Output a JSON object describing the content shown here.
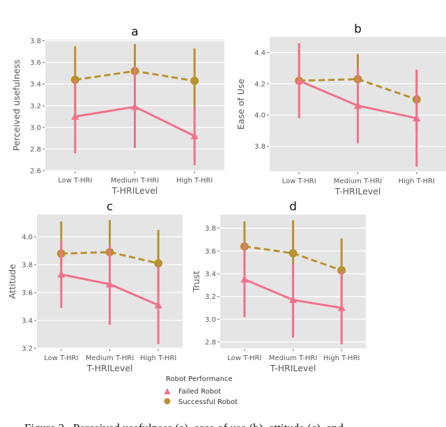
{
  "caption": "Figure 2 . Perceived usefulness (a), ease of use (b), attitude (c), and",
  "colors": {
    "failed": "#f2708a",
    "successful": "#b8922e",
    "panel_bg": "#e5e5e5",
    "grid": "#ffffff"
  },
  "legend": {
    "title": "Robot Performance",
    "entries": [
      {
        "label": "Failed Robot",
        "marker": "triangle",
        "line": "solid"
      },
      {
        "label": "Successful Robot",
        "marker": "circle",
        "line": "dashed"
      }
    ],
    "placement": "bottom-center"
  },
  "chart_data": [
    {
      "type": "line",
      "title": "a",
      "xlabel": "T-HRILevel",
      "ylabel": "Perceived usefulness",
      "categories": [
        "Low T-HRI",
        "Medium T-HRI",
        "High T-HRI"
      ],
      "ylim": [
        2.6,
        3.81
      ],
      "yticks": [
        "2.6",
        "2.8",
        "3.0",
        "3.2",
        "3.4",
        "3.6",
        "3.8"
      ],
      "grid": true,
      "series": [
        {
          "name": "Failed Robot",
          "values": [
            3.1,
            3.19,
            2.92
          ],
          "err_low": [
            2.76,
            2.81,
            2.65
          ],
          "err_high": [
            3.44,
            3.57,
            3.19
          ]
        },
        {
          "name": "Successful Robot",
          "values": [
            3.44,
            3.52,
            3.43
          ],
          "err_low": [
            3.14,
            3.26,
            3.14
          ],
          "err_high": [
            3.75,
            3.77,
            3.73
          ]
        }
      ]
    },
    {
      "type": "line",
      "title": "b",
      "xlabel": "T-HRILevel",
      "ylabel": "Ease of Use",
      "categories": [
        "Low T-HRI",
        "Medium T-HRI",
        "High T-HRI"
      ],
      "ylim": [
        3.64,
        4.5
      ],
      "yticks": [
        "3.8",
        "4.0",
        "4.2",
        "4.4"
      ],
      "grid": true,
      "series": [
        {
          "name": "Failed Robot",
          "values": [
            4.22,
            4.06,
            3.98
          ],
          "err_low": [
            3.98,
            3.82,
            3.67
          ],
          "err_high": [
            4.46,
            4.3,
            4.29
          ]
        },
        {
          "name": "Successful Robot",
          "values": [
            4.22,
            4.23,
            4.1
          ],
          "err_low": [
            4.02,
            4.07,
            3.89
          ],
          "err_high": [
            4.42,
            4.39,
            4.29
          ]
        }
      ]
    },
    {
      "type": "line",
      "title": "c",
      "xlabel": "T-HRILevel",
      "ylabel": "Attitude",
      "categories": [
        "Low T-HRI",
        "Medium T-HRI",
        "High T-HRI"
      ],
      "ylim": [
        3.2,
        4.16
      ],
      "yticks": [
        "3.2",
        "3.4",
        "3.6",
        "3.8",
        "4.0"
      ],
      "grid": true,
      "series": [
        {
          "name": "Failed Robot",
          "values": [
            3.73,
            3.66,
            3.51
          ],
          "err_low": [
            3.49,
            3.37,
            3.23
          ],
          "err_high": [
            3.97,
            3.94,
            3.79
          ]
        },
        {
          "name": "Successful Robot",
          "values": [
            3.88,
            3.89,
            3.81
          ],
          "err_low": [
            3.64,
            3.66,
            3.58
          ],
          "err_high": [
            4.11,
            4.12,
            4.05
          ]
        }
      ]
    },
    {
      "type": "line",
      "title": "d",
      "xlabel": "T-HRILevel",
      "ylabel": "Trust",
      "categories": [
        "Low T-HRI",
        "Medium T-HRI",
        "High T-HRI"
      ],
      "ylim": [
        2.745,
        3.92
      ],
      "yticks": [
        "2.8",
        "3.0",
        "3.2",
        "3.4",
        "3.6",
        "3.8"
      ],
      "grid": true,
      "series": [
        {
          "name": "Failed Robot",
          "values": [
            3.35,
            3.17,
            3.1
          ],
          "err_low": [
            3.02,
            2.84,
            2.78
          ],
          "err_high": [
            3.68,
            3.49,
            3.42
          ]
        },
        {
          "name": "Successful Robot",
          "values": [
            3.64,
            3.58,
            3.43
          ],
          "err_low": [
            3.43,
            3.29,
            3.1
          ],
          "err_high": [
            3.86,
            3.87,
            3.71
          ]
        }
      ]
    }
  ]
}
